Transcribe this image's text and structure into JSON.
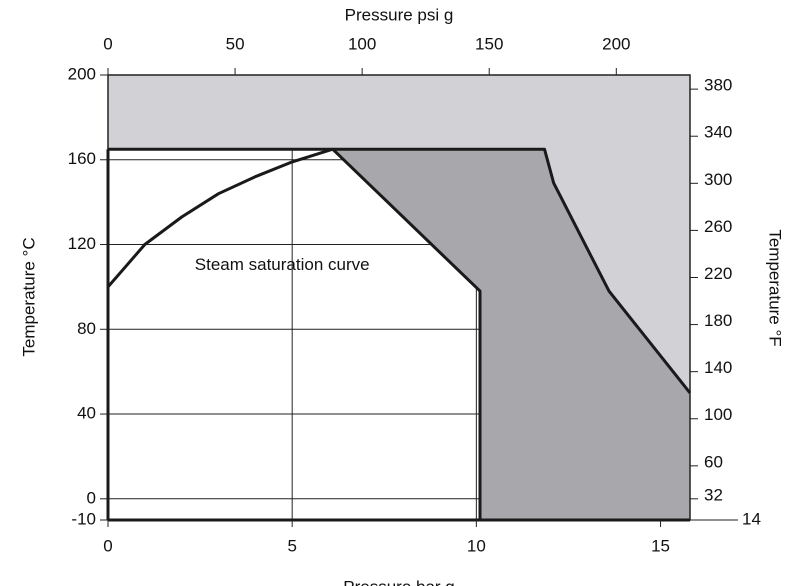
{
  "chart_data": {
    "type": "line",
    "xlabel": "Pressure bar g",
    "x2label": "Pressure psi g",
    "ylabel": "Temperature °C",
    "y2label": "Temperature °F",
    "xlim": [
      0,
      15.8
    ],
    "xticks": [
      0,
      5,
      10,
      15
    ],
    "x2lim": [
      0,
      229
    ],
    "x2ticks": [
      0,
      50,
      100,
      150,
      200
    ],
    "ylim": [
      -10,
      200
    ],
    "yticks": [
      -10,
      0,
      40,
      80,
      120,
      160,
      200
    ],
    "y2lim": [
      14,
      392
    ],
    "y2ticks": [
      14,
      32,
      60,
      100,
      140,
      180,
      220,
      260,
      300,
      340,
      380
    ],
    "grid": true,
    "regions": [
      {
        "color": "#d2d2d6",
        "x": [
          0,
          15.8,
          15.8,
          13.6,
          12.1,
          11.85,
          0
        ],
        "values": [
          200,
          200,
          50,
          98,
          149,
          165,
          165
        ]
      },
      {
        "color": "#a8a7ac",
        "x": [
          6.1,
          11.85,
          12.1,
          13.6,
          15.8,
          15.8,
          10.1,
          10.1
        ],
        "values": [
          165,
          165,
          149,
          98,
          50,
          -10,
          -10,
          98
        ]
      }
    ],
    "series": [
      {
        "color": "#1a1a1a",
        "x": [
          0,
          11.85,
          12.1,
          13.6,
          15.8
        ],
        "values": [
          165,
          165,
          149,
          98,
          50
        ]
      },
      {
        "color": "#1a1a1a",
        "x": [
          6.1,
          10.1,
          10.1
        ],
        "values": [
          165,
          98,
          -10
        ]
      },
      {
        "color": "#1a1a1a",
        "x": [
          0,
          15.8
        ],
        "values": [
          -10,
          -10
        ]
      },
      {
        "color": "#1a1a1a",
        "x": [
          0,
          0
        ],
        "values": [
          165,
          -10
        ]
      },
      {
        "name": "Steam saturation curve",
        "color": "#1a1a1a",
        "x": [
          0,
          1,
          2,
          3,
          4,
          5,
          6.1
        ],
        "values": [
          100,
          120,
          133,
          144,
          152,
          159,
          165
        ]
      }
    ]
  }
}
